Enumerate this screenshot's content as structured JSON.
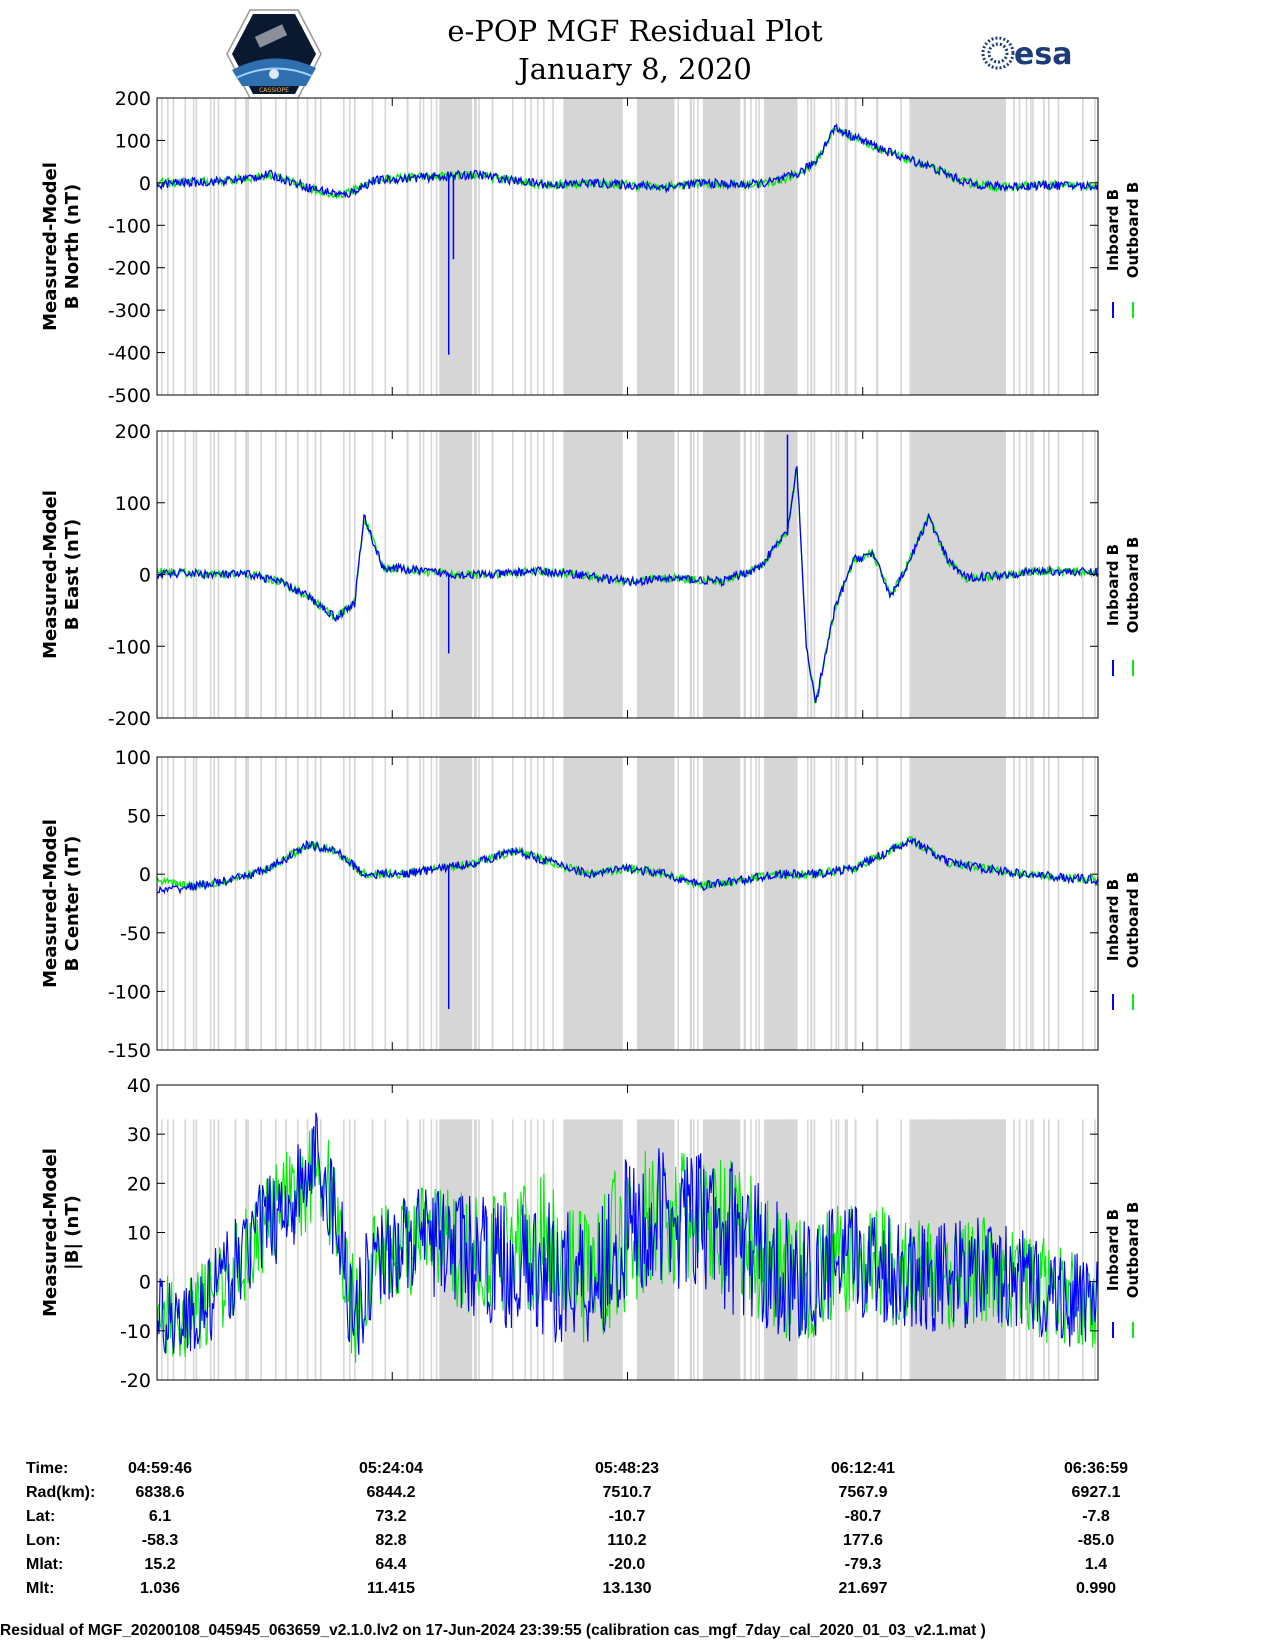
{
  "header": {
    "title_line1": "e-POP MGF Residual Plot",
    "title_line2": "January 8, 2020",
    "logo_left_text": "CASSIOPE",
    "logo_right_text": "esa"
  },
  "colors": {
    "inboard": "#0000ff",
    "outboard": "#00ee00",
    "gap_shading": "#d6d6d6"
  },
  "chart_data": [
    {
      "type": "line",
      "ylabel_line1": "Measured-Model",
      "ylabel_line2": "B North (nT)",
      "ylim": [
        -500,
        200
      ],
      "yticks": [
        200,
        100,
        0,
        -100,
        -200,
        -300,
        -400,
        -500
      ],
      "x": [
        0,
        0.02,
        0.05,
        0.08,
        0.12,
        0.16,
        0.18,
        0.2,
        0.23,
        0.26,
        0.3,
        0.34,
        0.38,
        0.42,
        0.46,
        0.5,
        0.54,
        0.58,
        0.62,
        0.65,
        0.68,
        0.7,
        0.72,
        0.75,
        0.78,
        0.82,
        0.86,
        0.9,
        0.94,
        1.0
      ],
      "series": [
        {
          "name": "Inboard B",
          "values": [
            -5,
            0,
            2,
            6,
            20,
            -10,
            -20,
            -30,
            5,
            10,
            15,
            20,
            5,
            -5,
            0,
            -5,
            -10,
            0,
            -5,
            0,
            20,
            50,
            130,
            100,
            70,
            40,
            0,
            -10,
            -5,
            -8
          ]
        },
        {
          "name": "Outboard B",
          "values": [
            0,
            0,
            3,
            6,
            18,
            -12,
            -22,
            -28,
            5,
            12,
            15,
            18,
            5,
            -5,
            0,
            -5,
            -10,
            0,
            -5,
            0,
            18,
            48,
            128,
            98,
            68,
            38,
            0,
            -10,
            -5,
            -8
          ]
        }
      ],
      "spikes": [
        {
          "x": 0.31,
          "min": -405
        },
        {
          "x": 0.315,
          "min": -180
        }
      ]
    },
    {
      "type": "line",
      "ylabel_line1": "Measured-Model",
      "ylabel_line2": "B East (nT)",
      "ylim": [
        -200,
        200
      ],
      "yticks": [
        200,
        100,
        0,
        -100,
        -200
      ],
      "x": [
        0,
        0.03,
        0.06,
        0.1,
        0.13,
        0.16,
        0.19,
        0.21,
        0.22,
        0.24,
        0.28,
        0.32,
        0.36,
        0.4,
        0.45,
        0.5,
        0.55,
        0.6,
        0.64,
        0.67,
        0.68,
        0.69,
        0.7,
        0.72,
        0.74,
        0.76,
        0.78,
        0.8,
        0.82,
        0.84,
        0.86,
        0.9,
        0.94,
        1.0
      ],
      "series": [
        {
          "name": "Inboard B",
          "values": [
            0,
            2,
            0,
            0,
            -10,
            -30,
            -60,
            -40,
            80,
            10,
            5,
            0,
            0,
            5,
            0,
            -10,
            -5,
            -10,
            10,
            60,
            150,
            -100,
            -180,
            -50,
            20,
            30,
            -30,
            20,
            80,
            20,
            -5,
            0,
            5,
            3
          ]
        },
        {
          "name": "Outboard B",
          "values": [
            5,
            2,
            0,
            0,
            -10,
            -30,
            -60,
            -40,
            80,
            10,
            5,
            0,
            0,
            5,
            0,
            -10,
            -5,
            -10,
            10,
            60,
            150,
            -100,
            -180,
            -50,
            20,
            30,
            -30,
            20,
            80,
            20,
            -5,
            0,
            5,
            3
          ]
        }
      ],
      "spikes": [
        {
          "x": 0.31,
          "min": -110
        },
        {
          "x": 0.67,
          "max": 195
        }
      ]
    },
    {
      "type": "line",
      "ylabel_line1": "Measured-Model",
      "ylabel_line2": "B Center (nT)",
      "ylim": [
        -150,
        100
      ],
      "yticks": [
        100,
        50,
        0,
        -50,
        -100,
        -150
      ],
      "x": [
        0,
        0.04,
        0.08,
        0.12,
        0.16,
        0.19,
        0.22,
        0.26,
        0.3,
        0.34,
        0.38,
        0.42,
        0.46,
        0.5,
        0.54,
        0.58,
        0.62,
        0.66,
        0.7,
        0.74,
        0.78,
        0.8,
        0.84,
        0.88,
        0.92,
        1.0
      ],
      "series": [
        {
          "name": "Inboard B",
          "values": [
            -15,
            -10,
            -5,
            5,
            25,
            20,
            0,
            0,
            5,
            10,
            20,
            10,
            0,
            5,
            0,
            -10,
            -5,
            0,
            0,
            5,
            20,
            30,
            10,
            5,
            0,
            -5
          ]
        },
        {
          "name": "Outboard B",
          "values": [
            -5,
            -10,
            -5,
            5,
            25,
            20,
            0,
            0,
            5,
            10,
            20,
            10,
            0,
            5,
            0,
            -10,
            -5,
            0,
            0,
            5,
            20,
            30,
            10,
            5,
            0,
            -5
          ]
        }
      ],
      "spikes": [
        {
          "x": 0.31,
          "min": -115
        }
      ]
    },
    {
      "type": "line",
      "ylabel_line1": "Measured-Model",
      "ylabel_line2": "|B| (nT)",
      "ylim": [
        -20,
        40
      ],
      "yticks": [
        40,
        30,
        20,
        10,
        0,
        -10,
        -20
      ],
      "x": [
        0,
        0.03,
        0.06,
        0.09,
        0.12,
        0.15,
        0.17,
        0.19,
        0.21,
        0.23,
        0.26,
        0.3,
        0.34,
        0.38,
        0.42,
        0.46,
        0.5,
        0.54,
        0.58,
        0.62,
        0.66,
        0.68,
        0.7,
        0.72,
        0.76,
        0.8,
        0.84,
        0.88,
        0.92,
        0.96,
        1.0
      ],
      "series": [
        {
          "name": "Inboard B",
          "values": [
            -6,
            -8,
            -3,
            5,
            13,
            18,
            25,
            14,
            -7,
            4,
            8,
            8,
            5,
            3,
            2,
            1,
            10,
            13,
            12,
            8,
            3,
            0,
            0,
            4,
            4,
            2,
            1,
            2,
            0,
            -3,
            -5
          ]
        },
        {
          "name": "Outboard B",
          "values": [
            -6,
            -8,
            -3,
            5,
            13,
            18,
            25,
            14,
            -7,
            4,
            8,
            8,
            5,
            8,
            8,
            1,
            10,
            13,
            12,
            8,
            3,
            0,
            0,
            4,
            4,
            2,
            1,
            2,
            0,
            -3,
            -5
          ]
        }
      ],
      "band": [
        0,
        0.2,
        0.23,
        0.5,
        0.55,
        0.62,
        0.66,
        0.7,
        0.8,
        1.0
      ],
      "band_width": [
        8,
        12,
        10,
        16,
        14,
        16,
        14,
        12,
        12,
        10
      ]
    }
  ],
  "legend": {
    "inboard": "Inboard B",
    "outboard": "Outboard B"
  },
  "footer": {
    "row_labels": [
      "Time:",
      "Rad(km):",
      "Lat:",
      "Lon:",
      "Mlat:",
      "Mlt:"
    ],
    "columns": [
      [
        "04:59:46",
        "6838.6",
        "6.1",
        "-58.3",
        "15.2",
        "1.036"
      ],
      [
        "05:24:04",
        "6844.2",
        "73.2",
        "82.8",
        "64.4",
        "11.415"
      ],
      [
        "05:48:23",
        "7510.7",
        "-10.7",
        "110.2",
        "-20.0",
        "13.130"
      ],
      [
        "06:12:41",
        "7567.9",
        "-80.7",
        "177.6",
        "-79.3",
        "21.697"
      ],
      [
        "06:36:59",
        "6927.1",
        "-7.8",
        "-85.0",
        "1.4",
        "0.990"
      ]
    ],
    "footnote": "Residual of MGF_20200108_045945_063659_v2.1.0.lv2 on 17-Jun-2024 23:39:55 (calibration cas_mgf_7day_cal_2020_01_03_v2.1.mat )"
  }
}
